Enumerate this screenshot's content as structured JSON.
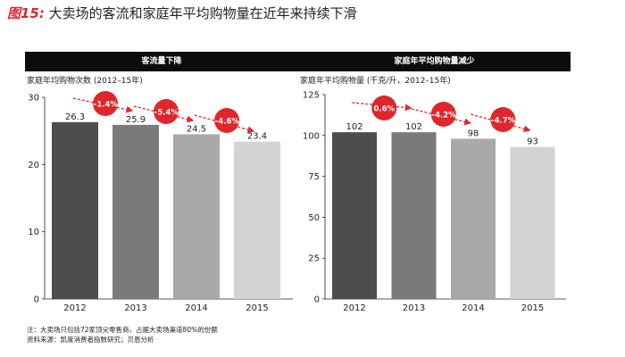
{
  "figure": {
    "number": "图15:",
    "title": "大卖场的客流和家庭年平均购物量在近年来持续下滑"
  },
  "chart_data": [
    {
      "type": "bar",
      "title": "客流量下降",
      "ylabel": "家庭年均购物次数 (2012–15年)",
      "categories": [
        "2012",
        "2013",
        "2014",
        "2015"
      ],
      "values": [
        26.3,
        25.9,
        24.5,
        23.4
      ],
      "value_labels": [
        "26.3",
        "25.9",
        "24.5",
        "23.4"
      ],
      "bar_colors": [
        "#4d4d4f",
        "#7a7a7c",
        "#a9a9ab",
        "#d3d3d4"
      ],
      "ylim": [
        0,
        30
      ],
      "yticks": [
        "0",
        "10",
        "20",
        "30"
      ],
      "ytick_values": [
        0,
        10,
        20,
        30
      ],
      "changes": [
        "–1.4%",
        "–5.4%",
        "–4.6%"
      ],
      "grid": false
    },
    {
      "type": "bar",
      "title": "家庭年平均购物量减少",
      "ylabel": "家庭年平均购物量 (千克/升，2012–15年)",
      "categories": [
        "2012",
        "2013",
        "2014",
        "2015"
      ],
      "values": [
        102,
        102,
        98,
        93
      ],
      "value_labels": [
        "102",
        "102",
        "98",
        "93"
      ],
      "bar_colors": [
        "#4d4d4f",
        "#7a7a7c",
        "#a9a9ab",
        "#d3d3d4"
      ],
      "ylim": [
        0,
        125
      ],
      "yticks": [
        "0",
        "25",
        "50",
        "75",
        "100",
        "125"
      ],
      "ytick_values": [
        0,
        25,
        50,
        75,
        100,
        125
      ],
      "changes": [
        "0.6%",
        "–4.2%",
        "–4.7%"
      ],
      "grid": false
    }
  ],
  "notes": {
    "note": "注：大卖场只包括72家顶尖零售商，占据大卖场渠道80%的份额",
    "source": "资料来源：凯度消费者指数研究；贝恩分析"
  },
  "colors": {
    "accent": "#e0262b",
    "header_bg": "#0d0d0d"
  }
}
